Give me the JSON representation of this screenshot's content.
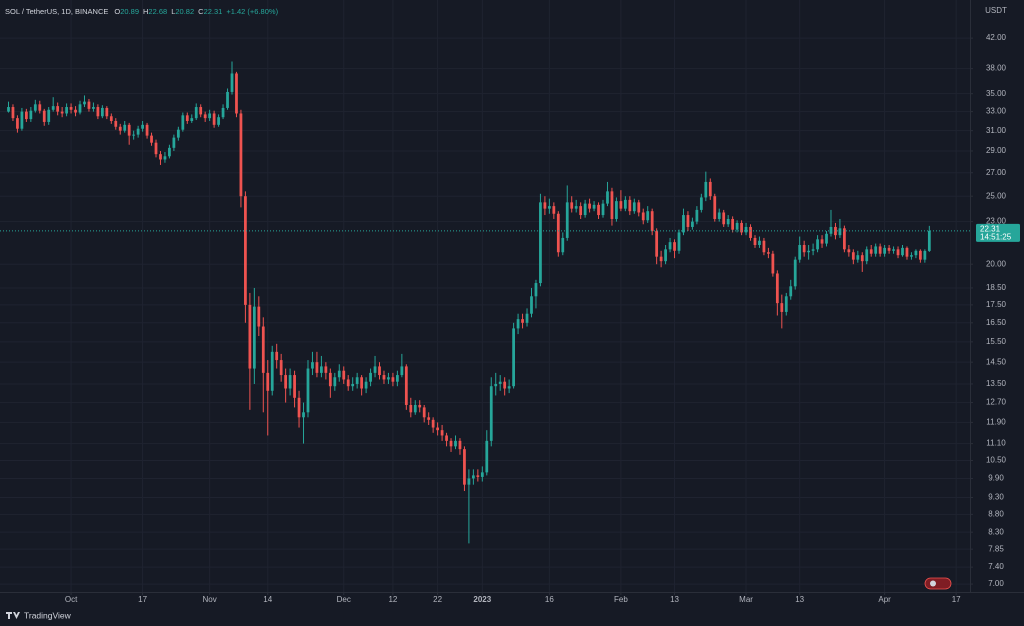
{
  "chart_data": {
    "type": "candlestick",
    "symbol": "SOL / TetherUS, 1D, BINANCE",
    "ohlc_letters": [
      "O",
      "H",
      "L",
      "C"
    ],
    "change": "+1.42 (+6.80%)",
    "currency": "USDT",
    "countdown": "14:51:25",
    "brand": "TradingView",
    "log_scale": true,
    "grid": true,
    "up_color": "#26a69a",
    "down_color": "#ef5350",
    "xlim": [
      -1.9,
      215.1
    ],
    "ylim": [
      47.6,
      6.82
    ],
    "xticks": [
      {
        "value": 14,
        "label": "Oct"
      },
      {
        "value": 30,
        "label": "17"
      },
      {
        "value": 45,
        "label": "Nov"
      },
      {
        "value": 58,
        "label": "14"
      },
      {
        "value": 75,
        "label": "Dec"
      },
      {
        "value": 86,
        "label": "12"
      },
      {
        "value": 96,
        "label": "22"
      },
      {
        "value": 106,
        "label": "2023"
      },
      {
        "value": 121,
        "label": "16"
      },
      {
        "value": 137,
        "label": "Feb"
      },
      {
        "value": 149,
        "label": "13"
      },
      {
        "value": 165,
        "label": "Mar"
      },
      {
        "value": 177,
        "label": "13"
      },
      {
        "value": 196,
        "label": "Apr"
      },
      {
        "value": 212,
        "label": "17"
      }
    ],
    "yticks": [
      {
        "value": 42,
        "label": "42.00"
      },
      {
        "value": 38,
        "label": "38.00"
      },
      {
        "value": 35,
        "label": "35.00"
      },
      {
        "value": 33,
        "label": "33.00"
      },
      {
        "value": 31,
        "label": "31.00"
      },
      {
        "value": 29,
        "label": "29.00"
      },
      {
        "value": 27,
        "label": "27.00"
      },
      {
        "value": 25,
        "label": "25.00"
      },
      {
        "value": 23,
        "label": "23.00"
      },
      {
        "value": 20,
        "label": "20.00"
      },
      {
        "value": 18.5,
        "label": "18.50"
      },
      {
        "value": 17.5,
        "label": "17.50"
      },
      {
        "value": 16.5,
        "label": "16.50"
      },
      {
        "value": 15.5,
        "label": "15.50"
      },
      {
        "value": 14.5,
        "label": "14.50"
      },
      {
        "value": 13.5,
        "label": "13.50"
      },
      {
        "value": 12.7,
        "label": "12.70"
      },
      {
        "value": 11.9,
        "label": "11.90"
      },
      {
        "value": 11.1,
        "label": "11.10"
      },
      {
        "value": 10.5,
        "label": "10.50"
      },
      {
        "value": 9.9,
        "label": "9.90"
      },
      {
        "value": 9.3,
        "label": "9.30"
      },
      {
        "value": 8.8,
        "label": "8.80"
      },
      {
        "value": 8.3,
        "label": "8.30"
      },
      {
        "value": 7.85,
        "label": "7.85"
      },
      {
        "value": 7.4,
        "label": "7.40"
      },
      {
        "value": 7,
        "label": "7.00"
      }
    ],
    "candles": [
      [
        33.0,
        34.1,
        32.9,
        33.5
      ],
      [
        33.5,
        33.8,
        32.0,
        32.3
      ],
      [
        32.3,
        32.6,
        30.8,
        31.2
      ],
      [
        31.2,
        33.4,
        31.0,
        33.0
      ],
      [
        33.0,
        33.3,
        31.9,
        32.2
      ],
      [
        32.2,
        33.5,
        31.9,
        33.1
      ],
      [
        33.1,
        34.3,
        32.9,
        33.8
      ],
      [
        33.8,
        34.2,
        32.8,
        33.1
      ],
      [
        33.1,
        33.3,
        31.5,
        31.9
      ],
      [
        31.9,
        33.5,
        31.6,
        33.2
      ],
      [
        33.2,
        34.6,
        33.0,
        33.6
      ],
      [
        33.6,
        34.0,
        32.6,
        33.0
      ],
      [
        33.0,
        33.5,
        32.4,
        32.8
      ],
      [
        32.8,
        33.9,
        32.5,
        33.5
      ],
      [
        33.5,
        33.9,
        32.8,
        33.2
      ],
      [
        33.2,
        33.6,
        32.5,
        32.9
      ],
      [
        32.9,
        34.2,
        32.7,
        33.8
      ],
      [
        33.8,
        34.8,
        33.5,
        34.1
      ],
      [
        34.1,
        34.4,
        33.0,
        33.3
      ],
      [
        33.3,
        34.0,
        33.0,
        33.5
      ],
      [
        33.5,
        33.8,
        32.2,
        32.5
      ],
      [
        32.5,
        33.7,
        32.3,
        33.4
      ],
      [
        33.4,
        33.6,
        32.2,
        32.5
      ],
      [
        32.5,
        32.8,
        31.7,
        32.0
      ],
      [
        32.0,
        32.3,
        31.1,
        31.4
      ],
      [
        31.4,
        31.7,
        30.6,
        31.0
      ],
      [
        31.0,
        32.0,
        30.8,
        31.6
      ],
      [
        31.6,
        31.8,
        29.6,
        30.5
      ],
      [
        30.5,
        31.0,
        30.1,
        30.6
      ],
      [
        30.6,
        31.5,
        30.3,
        31.2
      ],
      [
        31.2,
        32.0,
        30.9,
        31.6
      ],
      [
        31.6,
        31.8,
        30.2,
        30.5
      ],
      [
        30.5,
        30.8,
        29.5,
        29.8
      ],
      [
        29.8,
        30.1,
        28.4,
        28.7
      ],
      [
        28.7,
        29.0,
        27.7,
        28.2
      ],
      [
        28.2,
        28.9,
        27.9,
        28.5
      ],
      [
        28.5,
        29.6,
        28.3,
        29.3
      ],
      [
        29.3,
        30.6,
        29.0,
        30.3
      ],
      [
        30.3,
        31.4,
        30.0,
        31.1
      ],
      [
        31.1,
        32.9,
        30.9,
        32.6
      ],
      [
        32.6,
        32.9,
        31.7,
        32.0
      ],
      [
        32.0,
        32.7,
        31.8,
        32.3
      ],
      [
        32.3,
        33.9,
        32.1,
        33.5
      ],
      [
        33.5,
        33.8,
        32.4,
        32.7
      ],
      [
        32.7,
        33.0,
        31.9,
        32.3
      ],
      [
        32.3,
        33.2,
        32.0,
        32.8
      ],
      [
        32.8,
        33.1,
        31.3,
        31.6
      ],
      [
        31.6,
        32.7,
        31.4,
        32.4
      ],
      [
        32.4,
        33.8,
        32.2,
        33.4
      ],
      [
        33.4,
        35.6,
        33.2,
        35.2
      ],
      [
        35.2,
        38.9,
        34.9,
        37.4
      ],
      [
        37.4,
        37.6,
        32.4,
        32.8
      ],
      [
        32.8,
        33.2,
        24.1,
        25.0
      ],
      [
        25.0,
        25.4,
        16.5,
        17.5
      ],
      [
        17.5,
        18.2,
        12.4,
        14.2
      ],
      [
        14.2,
        18.5,
        13.5,
        17.4
      ],
      [
        17.4,
        18.0,
        15.8,
        16.3
      ],
      [
        16.3,
        16.8,
        12.3,
        14.0
      ],
      [
        14.0,
        14.6,
        11.4,
        13.2
      ],
      [
        13.2,
        15.3,
        13.0,
        15.0
      ],
      [
        15.0,
        15.4,
        14.2,
        14.6
      ],
      [
        14.6,
        14.9,
        13.6,
        13.9
      ],
      [
        13.9,
        14.2,
        12.7,
        13.3
      ],
      [
        13.3,
        14.2,
        13.0,
        13.9
      ],
      [
        13.9,
        14.1,
        12.5,
        12.9
      ],
      [
        12.9,
        13.2,
        11.7,
        12.1
      ],
      [
        12.1,
        12.7,
        11.1,
        12.3
      ],
      [
        12.3,
        14.6,
        12.1,
        14.2
      ],
      [
        14.2,
        15.0,
        13.9,
        14.5
      ],
      [
        14.5,
        15.0,
        13.8,
        14.0
      ],
      [
        14.0,
        14.8,
        13.8,
        14.3
      ],
      [
        14.3,
        14.5,
        13.7,
        14.0
      ],
      [
        14.0,
        14.2,
        12.9,
        13.4
      ],
      [
        13.4,
        14.0,
        13.2,
        13.8
      ],
      [
        13.8,
        14.4,
        13.6,
        14.1
      ],
      [
        14.1,
        14.3,
        13.5,
        13.7
      ],
      [
        13.7,
        13.9,
        13.2,
        13.4
      ],
      [
        13.4,
        13.8,
        13.2,
        13.5
      ],
      [
        13.5,
        14.0,
        13.3,
        13.8
      ],
      [
        13.8,
        13.9,
        13.0,
        13.3
      ],
      [
        13.3,
        13.8,
        13.1,
        13.6
      ],
      [
        13.6,
        14.2,
        13.4,
        14.0
      ],
      [
        14.0,
        14.8,
        13.8,
        14.3
      ],
      [
        14.3,
        14.5,
        13.7,
        13.9
      ],
      [
        13.9,
        14.1,
        13.5,
        13.7
      ],
      [
        13.7,
        14.0,
        13.5,
        13.8
      ],
      [
        13.8,
        14.0,
        13.4,
        13.6
      ],
      [
        13.6,
        14.1,
        13.4,
        13.9
      ],
      [
        13.9,
        14.9,
        13.8,
        14.3
      ],
      [
        14.3,
        14.4,
        12.4,
        12.6
      ],
      [
        12.6,
        12.9,
        12.1,
        12.3
      ],
      [
        12.3,
        12.8,
        12.2,
        12.6
      ],
      [
        12.6,
        12.8,
        12.3,
        12.5
      ],
      [
        12.5,
        12.6,
        11.9,
        12.1
      ],
      [
        12.1,
        12.3,
        11.8,
        12.0
      ],
      [
        12.0,
        12.1,
        11.5,
        11.7
      ],
      [
        11.7,
        11.9,
        11.4,
        11.6
      ],
      [
        11.6,
        11.8,
        11.2,
        11.4
      ],
      [
        11.4,
        11.5,
        11.0,
        11.2
      ],
      [
        11.2,
        11.3,
        10.8,
        11.0
      ],
      [
        11.0,
        11.4,
        10.9,
        11.2
      ],
      [
        11.2,
        11.3,
        10.7,
        10.9
      ],
      [
        10.9,
        11.0,
        9.5,
        9.7
      ],
      [
        9.7,
        10.2,
        8.0,
        9.9
      ],
      [
        9.9,
        10.2,
        9.7,
        10.0
      ],
      [
        10.0,
        10.2,
        9.8,
        9.95
      ],
      [
        9.95,
        10.3,
        9.8,
        10.1
      ],
      [
        10.1,
        11.6,
        10.0,
        11.2
      ],
      [
        11.2,
        13.8,
        11.0,
        13.4
      ],
      [
        13.4,
        14.0,
        13.0,
        13.5
      ],
      [
        13.5,
        13.9,
        13.2,
        13.6
      ],
      [
        13.6,
        13.8,
        13.0,
        13.3
      ],
      [
        13.3,
        13.7,
        13.1,
        13.4
      ],
      [
        13.4,
        16.5,
        13.3,
        16.2
      ],
      [
        16.2,
        17.0,
        15.9,
        16.7
      ],
      [
        16.7,
        17.0,
        16.2,
        16.5
      ],
      [
        16.5,
        17.3,
        16.3,
        17.0
      ],
      [
        17.0,
        18.5,
        16.8,
        18.0
      ],
      [
        18.0,
        19.0,
        17.3,
        18.8
      ],
      [
        18.8,
        25.2,
        18.6,
        24.5
      ],
      [
        24.5,
        25.0,
        23.5,
        24.0
      ],
      [
        24.0,
        24.8,
        23.6,
        24.2
      ],
      [
        24.2,
        24.5,
        23.2,
        23.6
      ],
      [
        23.6,
        23.8,
        20.5,
        20.8
      ],
      [
        20.8,
        22.2,
        20.6,
        21.8
      ],
      [
        21.8,
        25.9,
        21.6,
        24.5
      ],
      [
        24.5,
        25.0,
        23.7,
        24.0
      ],
      [
        24.0,
        24.7,
        23.7,
        24.2
      ],
      [
        24.2,
        24.5,
        23.2,
        23.5
      ],
      [
        23.5,
        24.7,
        23.3,
        24.4
      ],
      [
        24.4,
        24.8,
        23.7,
        24.0
      ],
      [
        24.0,
        24.6,
        23.8,
        24.3
      ],
      [
        24.3,
        24.5,
        23.2,
        23.5
      ],
      [
        23.5,
        24.7,
        23.3,
        24.4
      ],
      [
        24.4,
        26.2,
        24.2,
        25.4
      ],
      [
        25.4,
        25.7,
        22.7,
        23.2
      ],
      [
        23.2,
        24.9,
        23.0,
        24.6
      ],
      [
        24.6,
        25.5,
        23.8,
        24.0
      ],
      [
        24.0,
        25.0,
        23.8,
        24.7
      ],
      [
        24.7,
        25.0,
        23.5,
        23.8
      ],
      [
        23.8,
        24.8,
        23.6,
        24.5
      ],
      [
        24.5,
        24.7,
        23.4,
        23.7
      ],
      [
        23.7,
        24.0,
        22.8,
        23.1
      ],
      [
        23.1,
        24.2,
        22.9,
        23.8
      ],
      [
        23.8,
        24.0,
        22.0,
        22.3
      ],
      [
        22.3,
        22.5,
        20.0,
        20.5
      ],
      [
        20.5,
        20.9,
        19.8,
        20.2
      ],
      [
        20.2,
        21.3,
        20.0,
        21.0
      ],
      [
        21.0,
        21.8,
        20.8,
        21.5
      ],
      [
        21.5,
        21.7,
        20.4,
        20.9
      ],
      [
        20.9,
        22.4,
        20.7,
        22.2
      ],
      [
        22.2,
        24.0,
        22.0,
        23.5
      ],
      [
        23.5,
        23.8,
        22.3,
        22.6
      ],
      [
        22.6,
        23.3,
        22.4,
        23.0
      ],
      [
        23.0,
        24.2,
        22.8,
        23.9
      ],
      [
        23.9,
        25.2,
        23.7,
        24.9
      ],
      [
        24.9,
        27.1,
        24.6,
        26.2
      ],
      [
        26.2,
        26.5,
        24.7,
        25.0
      ],
      [
        25.0,
        25.2,
        23.0,
        23.2
      ],
      [
        23.2,
        24.0,
        23.0,
        23.7
      ],
      [
        23.7,
        23.9,
        22.6,
        22.8
      ],
      [
        22.8,
        23.5,
        22.6,
        23.2
      ],
      [
        23.2,
        23.4,
        22.2,
        22.4
      ],
      [
        22.4,
        23.1,
        22.2,
        22.9
      ],
      [
        22.9,
        23.1,
        22.0,
        22.2
      ],
      [
        22.2,
        22.9,
        22.0,
        22.6
      ],
      [
        22.6,
        22.8,
        21.6,
        21.8
      ],
      [
        21.8,
        22.0,
        21.1,
        21.3
      ],
      [
        21.3,
        21.9,
        21.1,
        21.6
      ],
      [
        21.6,
        21.8,
        20.6,
        20.8
      ],
      [
        20.8,
        21.1,
        20.4,
        20.7
      ],
      [
        20.7,
        20.9,
        19.2,
        19.4
      ],
      [
        19.4,
        19.6,
        16.9,
        17.6
      ],
      [
        17.6,
        18.1,
        16.2,
        17.1
      ],
      [
        17.1,
        18.2,
        16.9,
        18.0
      ],
      [
        18.0,
        19.0,
        17.8,
        18.6
      ],
      [
        18.6,
        20.5,
        18.4,
        20.3
      ],
      [
        20.3,
        21.9,
        20.1,
        21.3
      ],
      [
        21.3,
        21.6,
        20.5,
        20.8
      ],
      [
        20.8,
        21.3,
        20.3,
        20.9
      ],
      [
        20.9,
        21.4,
        20.6,
        21.0
      ],
      [
        21.0,
        22.0,
        20.8,
        21.7
      ],
      [
        21.7,
        22.0,
        21.1,
        21.4
      ],
      [
        21.4,
        22.3,
        21.2,
        22.1
      ],
      [
        22.1,
        23.9,
        21.9,
        22.6
      ],
      [
        22.6,
        22.9,
        21.7,
        22.0
      ],
      [
        22.0,
        23.2,
        21.8,
        22.5
      ],
      [
        22.5,
        22.7,
        20.8,
        21.0
      ],
      [
        21.0,
        21.3,
        20.5,
        20.8
      ],
      [
        20.8,
        21.0,
        20.0,
        20.3
      ],
      [
        20.3,
        20.9,
        20.1,
        20.6
      ],
      [
        20.6,
        20.8,
        19.5,
        20.2
      ],
      [
        20.2,
        21.2,
        20.0,
        21.0
      ],
      [
        21.0,
        21.3,
        20.5,
        20.7
      ],
      [
        20.7,
        21.4,
        20.5,
        21.2
      ],
      [
        21.2,
        21.4,
        20.5,
        20.7
      ],
      [
        20.7,
        21.3,
        20.5,
        21.1
      ],
      [
        21.1,
        21.3,
        20.7,
        20.9
      ],
      [
        20.9,
        21.2,
        20.7,
        21.0
      ],
      [
        21.0,
        21.2,
        20.4,
        20.6
      ],
      [
        20.6,
        21.3,
        20.5,
        21.1
      ],
      [
        21.1,
        21.2,
        20.3,
        20.5
      ],
      [
        20.5,
        20.8,
        20.3,
        20.6
      ],
      [
        20.6,
        21.0,
        20.4,
        20.9
      ],
      [
        20.9,
        21.0,
        20.1,
        20.3
      ],
      [
        20.3,
        21.0,
        20.1,
        20.89
      ],
      [
        20.89,
        22.68,
        20.82,
        22.31
      ]
    ]
  }
}
